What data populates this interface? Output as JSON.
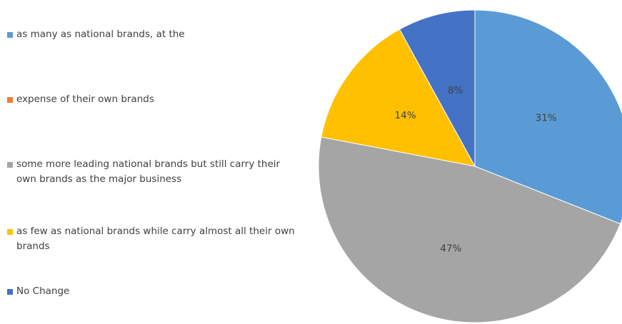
{
  "chart_data": {
    "type": "pie",
    "legend_placement": "left",
    "legend": [
      {
        "label": "as many as national brands, at the",
        "color": "#5B9BD5"
      },
      {
        "label": "expense of their own brands",
        "color": "#ED7D31"
      },
      {
        "label": "some more leading national brands but still carry their own brands as the major business",
        "color": "#A5A5A5"
      },
      {
        "label": "as few as national brands while carry almost all their own brands",
        "color": "#FFC000"
      },
      {
        "label": "No Change",
        "color": "#4472C4"
      }
    ],
    "slices": [
      {
        "label": "as many as national brands, at the",
        "value": 31,
        "display": "31%",
        "color": "#5B9BD5"
      },
      {
        "label": "some more leading national brands but still carry their own brands as the major business",
        "value": 47,
        "display": "47%",
        "color": "#A5A5A5"
      },
      {
        "label": "as few as national brands while carry almost all their own brands",
        "value": 14,
        "display": "14%",
        "color": "#FFC000"
      },
      {
        "label": "No Change",
        "value": 8,
        "display": "8%",
        "color": "#4472C4"
      }
    ]
  }
}
